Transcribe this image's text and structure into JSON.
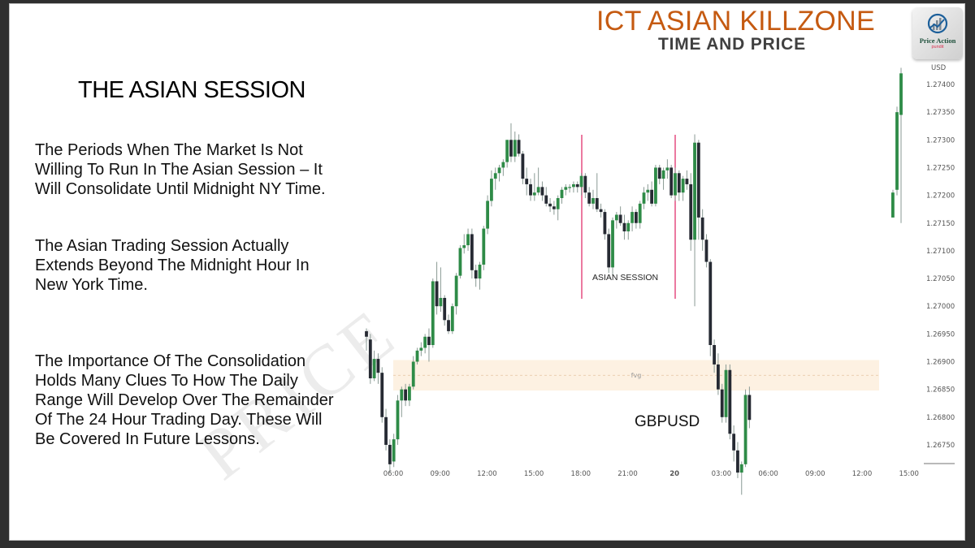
{
  "slide": {
    "title": "ICT ASIAN KILLZONE",
    "subtitle": "TIME AND PRICE",
    "logo": {
      "icon": "bar-chart-growth-icon",
      "brand": "Price Action",
      "tagline": "pundit"
    },
    "heading": "THE ASIAN SESSION",
    "paragraphs": [
      "The Periods When The Market Is Not\nWilling To Run In The Asian Session – It\nWill Consolidate Until Midnight NY Time.",
      "The Asian Trading Session Actually\nExtends Beyond The Midnight Hour In\nNew York Time.",
      "The Importance Of The Consolidation\nHolds Many Clues To How The Daily\nRange Will Develop Over The Remainder\nOf The 24 Hour Trading Day. These Will\nBe Covered In Future Lessons."
    ],
    "watermark": "PRICE"
  },
  "colors": {
    "bull": "#2e8b47",
    "bear": "#262a33",
    "wick": "#8a9a94",
    "session_line": "#e0336e",
    "fvg_fill": "#fdf1e2",
    "fvg_line": "#e5c4a0",
    "title": "#c55a11"
  },
  "chart_data": {
    "type": "candlestick",
    "symbol": "GBPUSD",
    "currency": "USD",
    "timeframe_note": "intraday (~15m bars)",
    "xlabel": "",
    "ylabel": "",
    "x_ticks": [
      "06:00",
      "09:00",
      "12:00",
      "15:00",
      "18:00",
      "21:00",
      "20",
      "03:00",
      "06:00",
      "09:00",
      "12:00",
      "15:00"
    ],
    "y_ticks": [
      "1.27400",
      "1.27350",
      "1.27300",
      "1.27250",
      "1.27200",
      "1.27150",
      "1.27100",
      "1.27050",
      "1.27000",
      "1.26950",
      "1.26900",
      "1.26850",
      "1.26800",
      "1.26750"
    ],
    "ylim": [
      1.2672,
      1.2743
    ],
    "annotations": [
      {
        "type": "vertical-line",
        "label": "",
        "at": "18:00",
        "color": "#e0336e"
      },
      {
        "type": "vertical-line",
        "label": "",
        "at": "00:00",
        "color": "#e0336e"
      },
      {
        "type": "text",
        "label": "ASIAN SESSION",
        "between": [
          "18:00",
          "00:00"
        ]
      },
      {
        "type": "zone",
        "label": "fvg",
        "from": 1.26848,
        "to": 1.26903
      }
    ],
    "candles": [
      [
        1.26955,
        1.2696,
        1.2692,
        1.26945
      ],
      [
        1.2694,
        1.2695,
        1.2686,
        1.2687
      ],
      [
        1.2687,
        1.2692,
        1.26865,
        1.26905
      ],
      [
        1.26905,
        1.26915,
        1.2686,
        1.2688
      ],
      [
        1.2688,
        1.2689,
        1.2679,
        1.268
      ],
      [
        1.268,
        1.26815,
        1.2674,
        1.2675
      ],
      [
        1.2675,
        1.2676,
        1.267,
        1.26715
      ],
      [
        1.2672,
        1.2677,
        1.2671,
        1.2676
      ],
      [
        1.2676,
        1.2684,
        1.2675,
        1.2683
      ],
      [
        1.2683,
        1.26855,
        1.268,
        1.2685
      ],
      [
        1.2685,
        1.2686,
        1.2682,
        1.2683
      ],
      [
        1.2683,
        1.2686,
        1.2682,
        1.26855
      ],
      [
        1.26855,
        1.2691,
        1.2685,
        1.269
      ],
      [
        1.269,
        1.26925,
        1.26895,
        1.2692
      ],
      [
        1.2692,
        1.26935,
        1.2691,
        1.26925
      ],
      [
        1.26925,
        1.2695,
        1.26915,
        1.26945
      ],
      [
        1.26945,
        1.2696,
        1.269,
        1.2693
      ],
      [
        1.2693,
        1.2705,
        1.26925,
        1.27045
      ],
      [
        1.27045,
        1.2708,
        1.26985,
        1.27
      ],
      [
        1.27,
        1.2707,
        1.2699,
        1.27015
      ],
      [
        1.27015,
        1.2702,
        1.26965,
        1.26975
      ],
      [
        1.26975,
        1.26985,
        1.2695,
        1.26955
      ],
      [
        1.26955,
        1.27005,
        1.2695,
        1.27
      ],
      [
        1.27,
        1.2706,
        1.26985,
        1.27055
      ],
      [
        1.27055,
        1.2711,
        1.2705,
        1.27105
      ],
      [
        1.27105,
        1.2713,
        1.27095,
        1.2711
      ],
      [
        1.2711,
        1.2714,
        1.271,
        1.2713
      ],
      [
        1.2713,
        1.2714,
        1.2705,
        1.27065
      ],
      [
        1.27065,
        1.27075,
        1.27035,
        1.2705
      ],
      [
        1.2705,
        1.2708,
        1.2703,
        1.27075
      ],
      [
        1.27075,
        1.27145,
        1.27065,
        1.2714
      ],
      [
        1.2714,
        1.272,
        1.2713,
        1.2719
      ],
      [
        1.2719,
        1.27245,
        1.2718,
        1.2723
      ],
      [
        1.2723,
        1.2725,
        1.2721,
        1.2724
      ],
      [
        1.2724,
        1.27255,
        1.27225,
        1.2725
      ],
      [
        1.2725,
        1.27265,
        1.27235,
        1.2726
      ],
      [
        1.2726,
        1.273,
        1.2725,
        1.273
      ],
      [
        1.273,
        1.2733,
        1.2726,
        1.2727
      ],
      [
        1.2727,
        1.27315,
        1.2726,
        1.273
      ],
      [
        1.273,
        1.2731,
        1.2727,
        1.27275
      ],
      [
        1.27275,
        1.2728,
        1.2722,
        1.2723
      ],
      [
        1.2723,
        1.2725,
        1.272,
        1.2722
      ],
      [
        1.2722,
        1.2723,
        1.2719,
        1.272
      ],
      [
        1.272,
        1.2724,
        1.2719,
        1.27205
      ],
      [
        1.27205,
        1.2725,
        1.272,
        1.27215
      ],
      [
        1.27215,
        1.27225,
        1.2719,
        1.272
      ],
      [
        1.272,
        1.27215,
        1.2718,
        1.27185
      ],
      [
        1.27185,
        1.27195,
        1.2717,
        1.2718
      ],
      [
        1.2718,
        1.2719,
        1.27165,
        1.27175
      ],
      [
        1.27175,
        1.272,
        1.27155,
        1.27195
      ],
      [
        1.27195,
        1.27215,
        1.27185,
        1.2721
      ],
      [
        1.2721,
        1.2722,
        1.272,
        1.27215
      ],
      [
        1.27215,
        1.2722,
        1.27205,
        1.27215
      ],
      [
        1.27215,
        1.27225,
        1.27205,
        1.2722
      ],
      [
        1.2722,
        1.27225,
        1.27205,
        1.27215
      ],
      [
        1.27215,
        1.2724,
        1.272,
        1.27235
      ],
      [
        1.27235,
        1.2724,
        1.27195,
        1.27205
      ],
      [
        1.27205,
        1.27215,
        1.2718,
        1.27185
      ],
      [
        1.27185,
        1.2721,
        1.27175,
        1.27195
      ],
      [
        1.27195,
        1.2724,
        1.2717,
        1.27175
      ],
      [
        1.27175,
        1.27185,
        1.2716,
        1.2717
      ],
      [
        1.2717,
        1.27175,
        1.2712,
        1.2713
      ],
      [
        1.2713,
        1.2714,
        1.2706,
        1.2707
      ],
      [
        1.2707,
        1.2716,
        1.27055,
        1.27155
      ],
      [
        1.27155,
        1.2717,
        1.2714,
        1.27165
      ],
      [
        1.27165,
        1.2718,
        1.27145,
        1.2715
      ],
      [
        1.2715,
        1.27165,
        1.2712,
        1.27135
      ],
      [
        1.27135,
        1.27155,
        1.2712,
        1.2715
      ],
      [
        1.2715,
        1.2718,
        1.27135,
        1.2717
      ],
      [
        1.2717,
        1.27175,
        1.2714,
        1.2715
      ],
      [
        1.2715,
        1.2719,
        1.2714,
        1.27185
      ],
      [
        1.27185,
        1.27215,
        1.27175,
        1.27205
      ],
      [
        1.27205,
        1.2722,
        1.2719,
        1.2721
      ],
      [
        1.2721,
        1.27225,
        1.2718,
        1.27185
      ],
      [
        1.27185,
        1.27255,
        1.2718,
        1.2725
      ],
      [
        1.2725,
        1.27255,
        1.2722,
        1.2723
      ],
      [
        1.2723,
        1.2725,
        1.2721,
        1.27245
      ],
      [
        1.27245,
        1.27265,
        1.2723,
        1.2725
      ],
      [
        1.2725,
        1.27255,
        1.27195,
        1.272
      ],
      [
        1.272,
        1.2725,
        1.2719,
        1.2724
      ],
      [
        1.2724,
        1.27245,
        1.2719,
        1.27205
      ],
      [
        1.27205,
        1.27235,
        1.2719,
        1.2723
      ],
      [
        1.2723,
        1.27245,
        1.2721,
        1.2722
      ],
      [
        1.2722,
        1.2724,
        1.271,
        1.2712
      ],
      [
        1.2712,
        1.2731,
        1.27,
        1.27295
      ],
      [
        1.27295,
        1.273,
        1.2712,
        1.2716
      ],
      [
        1.2716,
        1.27175,
        1.271,
        1.2712
      ],
      [
        1.2712,
        1.2713,
        1.2707,
        1.2708
      ],
      [
        1.2708,
        1.27085,
        1.2691,
        1.2693
      ],
      [
        1.2693,
        1.2694,
        1.2688,
        1.26895
      ],
      [
        1.26895,
        1.26915,
        1.2684,
        1.2685
      ],
      [
        1.2685,
        1.2686,
        1.2679,
        1.268
      ],
      [
        1.268,
        1.26895,
        1.2679,
        1.26885
      ],
      [
        1.26885,
        1.26895,
        1.2676,
        1.2677
      ],
      [
        1.2677,
        1.26785,
        1.2672,
        1.2674
      ],
      [
        1.2674,
        1.26755,
        1.2669,
        1.267
      ],
      [
        1.267,
        1.2672,
        1.2666,
        1.26715
      ],
      [
        1.26715,
        1.2685,
        1.2671,
        1.2684
      ],
      [
        1.2684,
        1.26855,
        1.2678,
        1.26795
      ]
    ]
  }
}
